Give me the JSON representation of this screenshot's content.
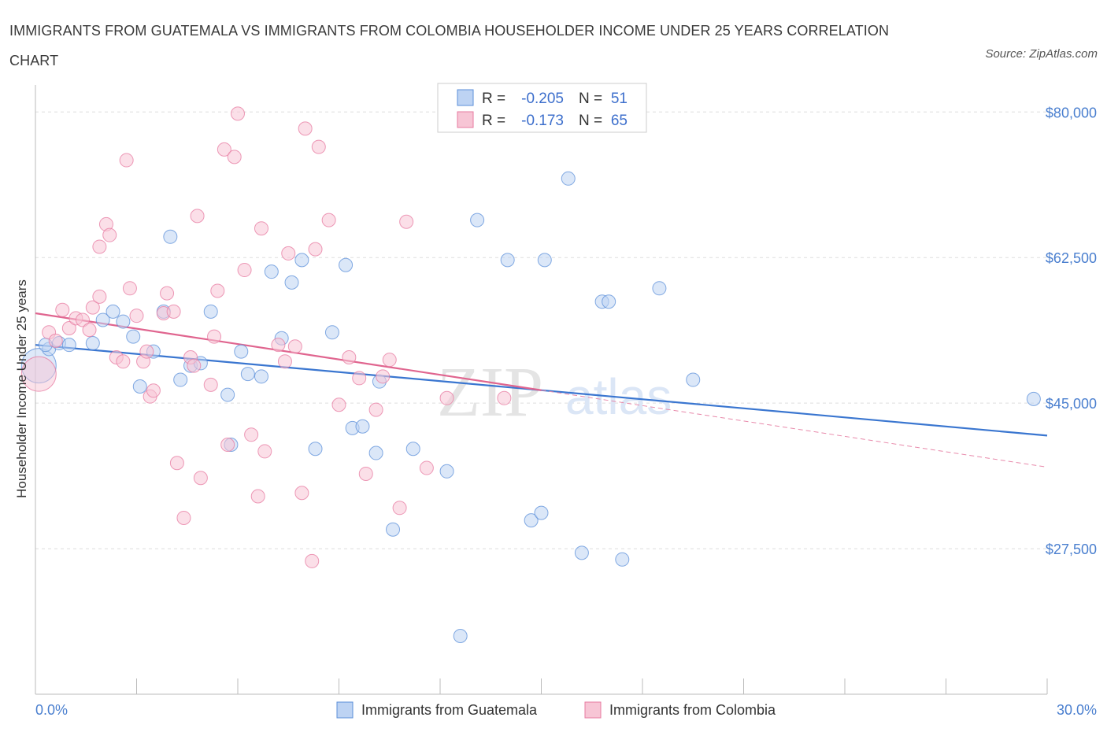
{
  "title": "IMMIGRANTS FROM GUATEMALA VS IMMIGRANTS FROM COLOMBIA HOUSEHOLDER INCOME UNDER 25 YEARS CORRELATION CHART",
  "source": "Source: ZipAtlas.com",
  "watermark": {
    "zip": "ZIP",
    "atlas": "atlas"
  },
  "chart_data": {
    "type": "scatter",
    "title": "IMMIGRANTS FROM GUATEMALA VS IMMIGRANTS FROM COLOMBIA HOUSEHOLDER INCOME UNDER 25 YEARS CORRELATION CHART",
    "ylabel": "Householder Income Under 25 years",
    "xlabel": "",
    "xlim": [
      0,
      30
    ],
    "ylim": [
      10000,
      84000
    ],
    "x_tick_labels": [
      "0.0%",
      "30.0%"
    ],
    "y_ticks": [
      {
        "value": 80000,
        "label": "$80,000"
      },
      {
        "value": 62500,
        "label": "$62,500"
      },
      {
        "value": 45000,
        "label": "$45,000"
      },
      {
        "value": 27500,
        "label": "$27,500"
      }
    ],
    "legend": {
      "rows": [
        {
          "r_label": "R =",
          "r_value": "-0.205",
          "n_label": "N =",
          "n_value": "51",
          "color": "#5b8fd9"
        },
        {
          "r_label": "R =",
          "r_value": "-0.173",
          "n_label": "N =",
          "n_value": "65",
          "color": "#e77aa0"
        }
      ]
    },
    "series": [
      {
        "name": "Immigrants from Guatemala",
        "color": "#5b8fd9",
        "fill": "#bdd3f3",
        "trend": {
          "x0": 0,
          "y0": 52000,
          "x1": 30,
          "y1": 41100
        },
        "points": [
          [
            0.1,
            49500
          ],
          [
            0.4,
            51500
          ],
          [
            0.7,
            52200
          ],
          [
            1.0,
            52000
          ],
          [
            1.7,
            52200
          ],
          [
            2.0,
            55000
          ],
          [
            2.3,
            56000
          ],
          [
            2.6,
            54800
          ],
          [
            2.9,
            53000
          ],
          [
            3.1,
            47000
          ],
          [
            3.5,
            51200
          ],
          [
            3.8,
            56000
          ],
          [
            4.0,
            65000
          ],
          [
            4.3,
            47800
          ],
          [
            4.6,
            49500
          ],
          [
            4.9,
            49800
          ],
          [
            5.2,
            56000
          ],
          [
            5.7,
            46000
          ],
          [
            5.8,
            40000
          ],
          [
            6.1,
            51200
          ],
          [
            6.3,
            48500
          ],
          [
            6.7,
            48200
          ],
          [
            7.0,
            60800
          ],
          [
            7.3,
            52800
          ],
          [
            7.6,
            59500
          ],
          [
            7.9,
            62200
          ],
          [
            8.3,
            39500
          ],
          [
            8.8,
            53500
          ],
          [
            9.2,
            61600
          ],
          [
            9.4,
            42000
          ],
          [
            9.7,
            42200
          ],
          [
            10.1,
            39000
          ],
          [
            10.2,
            47600
          ],
          [
            10.6,
            29800
          ],
          [
            11.2,
            39500
          ],
          [
            12.2,
            36800
          ],
          [
            12.6,
            17000
          ],
          [
            13.1,
            67000
          ],
          [
            14.0,
            62200
          ],
          [
            14.7,
            30900
          ],
          [
            15.0,
            31800
          ],
          [
            15.1,
            62200
          ],
          [
            15.8,
            72000
          ],
          [
            16.2,
            27000
          ],
          [
            16.8,
            57200
          ],
          [
            17.0,
            57200
          ],
          [
            17.4,
            26200
          ],
          [
            18.5,
            58800
          ],
          [
            19.5,
            47800
          ],
          [
            29.6,
            45500
          ],
          [
            0.3,
            52000
          ]
        ]
      },
      {
        "name": "Immigrants from Colombia",
        "color": "#e77aa0",
        "fill": "#f7c5d5",
        "trend": {
          "x0": 0,
          "y0": 55800,
          "x1": 30,
          "y1": 37300
        },
        "points": [
          [
            0.1,
            48500
          ],
          [
            0.4,
            53500
          ],
          [
            0.6,
            52500
          ],
          [
            0.8,
            56200
          ],
          [
            1.0,
            54000
          ],
          [
            1.2,
            55200
          ],
          [
            1.4,
            55000
          ],
          [
            1.6,
            53800
          ],
          [
            1.7,
            56500
          ],
          [
            1.9,
            57800
          ],
          [
            1.9,
            63800
          ],
          [
            2.1,
            66500
          ],
          [
            2.2,
            65200
          ],
          [
            2.4,
            50500
          ],
          [
            2.6,
            50000
          ],
          [
            2.7,
            74200
          ],
          [
            2.8,
            58800
          ],
          [
            3.0,
            55500
          ],
          [
            3.2,
            50000
          ],
          [
            3.3,
            51200
          ],
          [
            3.4,
            45800
          ],
          [
            3.5,
            46500
          ],
          [
            3.8,
            55800
          ],
          [
            3.9,
            58200
          ],
          [
            4.1,
            56000
          ],
          [
            4.2,
            37800
          ],
          [
            4.4,
            31200
          ],
          [
            4.6,
            50500
          ],
          [
            4.7,
            49500
          ],
          [
            4.8,
            67500
          ],
          [
            4.9,
            36000
          ],
          [
            5.2,
            47200
          ],
          [
            5.3,
            53000
          ],
          [
            5.4,
            58500
          ],
          [
            5.6,
            75500
          ],
          [
            5.7,
            40000
          ],
          [
            5.9,
            74600
          ],
          [
            6.0,
            79800
          ],
          [
            6.2,
            61000
          ],
          [
            6.4,
            41200
          ],
          [
            6.6,
            33800
          ],
          [
            6.7,
            66000
          ],
          [
            6.8,
            39200
          ],
          [
            7.2,
            52000
          ],
          [
            7.4,
            50000
          ],
          [
            7.5,
            63000
          ],
          [
            7.7,
            51800
          ],
          [
            7.9,
            34200
          ],
          [
            8.0,
            78000
          ],
          [
            8.2,
            26000
          ],
          [
            8.3,
            63500
          ],
          [
            8.4,
            75800
          ],
          [
            8.7,
            67000
          ],
          [
            9.0,
            44800
          ],
          [
            9.3,
            50500
          ],
          [
            9.6,
            48000
          ],
          [
            9.8,
            36500
          ],
          [
            10.1,
            44200
          ],
          [
            10.3,
            48200
          ],
          [
            10.5,
            50200
          ],
          [
            10.8,
            32400
          ],
          [
            11.0,
            66800
          ],
          [
            11.6,
            37200
          ],
          [
            12.2,
            45600
          ],
          [
            13.9,
            45600
          ]
        ]
      }
    ]
  },
  "bottom_legend": [
    {
      "label": "Immigrants from Guatemala",
      "color": "#5b8fd9",
      "fill": "#bdd3f3"
    },
    {
      "label": "Immigrants from Colombia",
      "color": "#e77aa0",
      "fill": "#f7c5d5"
    }
  ]
}
